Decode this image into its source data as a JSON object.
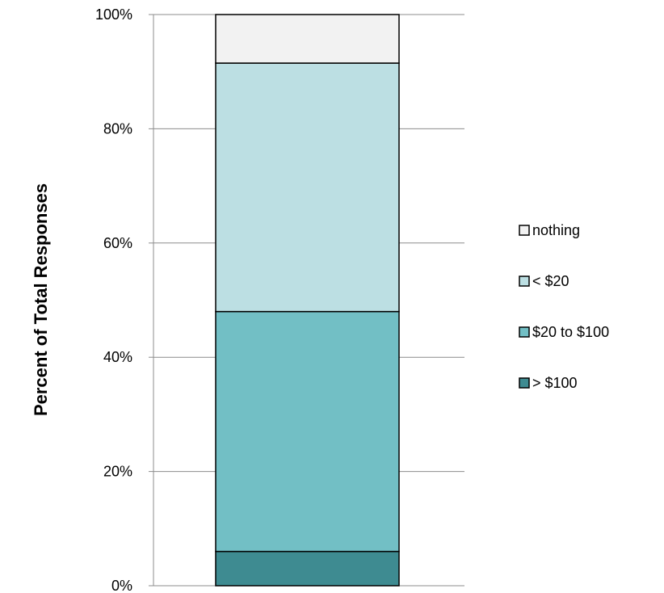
{
  "chart_data": {
    "type": "bar",
    "stacked": true,
    "title": "",
    "xlabel": "",
    "ylabel": "Percent of Total Responses",
    "ylim": [
      0,
      100
    ],
    "y_ticks": [
      "0%",
      "20%",
      "40%",
      "60%",
      "80%",
      "100%"
    ],
    "grid": true,
    "legend_position": "right",
    "categories": [
      ""
    ],
    "series": [
      {
        "name": "> $100",
        "values": [
          6
        ],
        "color": "#3e8b91"
      },
      {
        "name": "$20 to $100",
        "values": [
          42
        ],
        "color": "#72bfc5"
      },
      {
        "name": "< $20",
        "values": [
          43.5
        ],
        "color": "#bcdfe3"
      },
      {
        "name": "nothing",
        "values": [
          8.5
        ],
        "color": "#f2f2f2"
      }
    ],
    "legend_order": [
      "nothing",
      "< $20",
      "$20 to $100",
      "> $100"
    ]
  }
}
